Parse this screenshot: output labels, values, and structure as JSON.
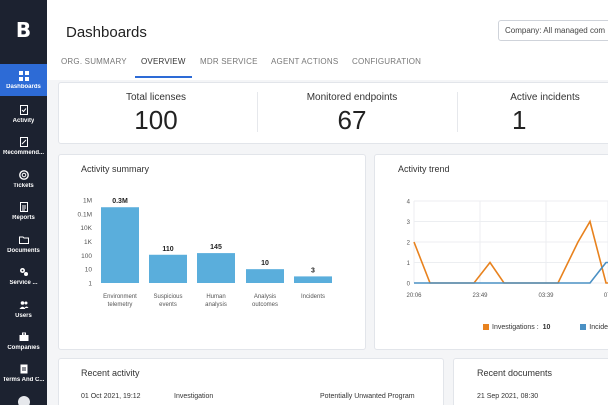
{
  "sidebar": {
    "logo": "B",
    "items": [
      {
        "label": "Dashboards",
        "icon": "grid-icon",
        "active": true
      },
      {
        "label": "Activity",
        "icon": "activity-doc-icon",
        "active": false
      },
      {
        "label": "Recommend...",
        "icon": "recommendation-icon",
        "active": false
      },
      {
        "label": "Tickets",
        "icon": "lifebuoy-icon",
        "active": false
      },
      {
        "label": "Reports",
        "icon": "report-icon",
        "active": false
      },
      {
        "label": "Documents",
        "icon": "folder-icon",
        "active": false
      },
      {
        "label": "Service ...",
        "icon": "gears-icon",
        "active": false
      },
      {
        "label": "Users",
        "icon": "users-icon",
        "active": false
      },
      {
        "label": "Companies",
        "icon": "briefcase-icon",
        "active": false
      },
      {
        "label": "Terms And C...",
        "icon": "terms-icon",
        "active": false
      }
    ]
  },
  "header": {
    "title": "Dashboards",
    "company_select": "Company: All managed com"
  },
  "tabs": [
    {
      "label": "ORG. SUMMARY",
      "active": false
    },
    {
      "label": "OVERVIEW",
      "active": true
    },
    {
      "label": "MDR SERVICE",
      "active": false
    },
    {
      "label": "AGENT ACTIONS",
      "active": false
    },
    {
      "label": "CONFIGURATION",
      "active": false
    }
  ],
  "stats": [
    {
      "label": "Total licenses",
      "value": "100"
    },
    {
      "label": "Monitored endpoints",
      "value": "67"
    },
    {
      "label": "Active incidents",
      "value": "1"
    }
  ],
  "activity_summary": {
    "title": "Activity summary",
    "chart_data": {
      "type": "bar",
      "scale": "log",
      "y_ticks": [
        "1M",
        "0.1M",
        "10K",
        "1K",
        "100",
        "10",
        "1"
      ],
      "categories": [
        "Environment telemetry",
        "Suspicious events",
        "Human analysis",
        "Analysis outcomes",
        "Incidents"
      ],
      "values": [
        300000,
        110,
        145,
        10,
        3
      ],
      "value_labels": [
        "0.3M",
        "110",
        "145",
        "10",
        "3"
      ],
      "color": "#5aaedc"
    }
  },
  "activity_trend": {
    "title": "Activity trend",
    "chart_data": {
      "type": "line",
      "x_ticks": [
        "20:06",
        "23:49",
        "03:39",
        "07:"
      ],
      "y_ticks": [
        "4",
        "3",
        "2",
        "1",
        "0"
      ],
      "ylim": [
        0,
        4
      ],
      "series": [
        {
          "name": "Investigations :",
          "total": "10",
          "color": "#e8821e",
          "points": [
            [
              0,
              2
            ],
            [
              0.08,
              0
            ],
            [
              0.3,
              0
            ],
            [
              0.38,
              1
            ],
            [
              0.45,
              0
            ],
            [
              0.72,
              0
            ],
            [
              0.82,
              2
            ],
            [
              0.88,
              3
            ],
            [
              0.96,
              0
            ],
            [
              1.0,
              0
            ]
          ]
        },
        {
          "name": "Incide",
          "color": "#4a90c4",
          "points": [
            [
              0,
              0
            ],
            [
              0.88,
              0
            ],
            [
              0.96,
              1
            ],
            [
              1.0,
              1
            ]
          ]
        }
      ]
    }
  },
  "recent_activity": {
    "title": "Recent activity",
    "rows": [
      {
        "date": "01 Oct 2021, 19:12",
        "type": "Investigation",
        "detail": "Potentially Unwanted Program"
      }
    ]
  },
  "recent_documents": {
    "title": "Recent documents",
    "rows": [
      {
        "date": "21 Sep 2021, 08:30"
      }
    ]
  }
}
